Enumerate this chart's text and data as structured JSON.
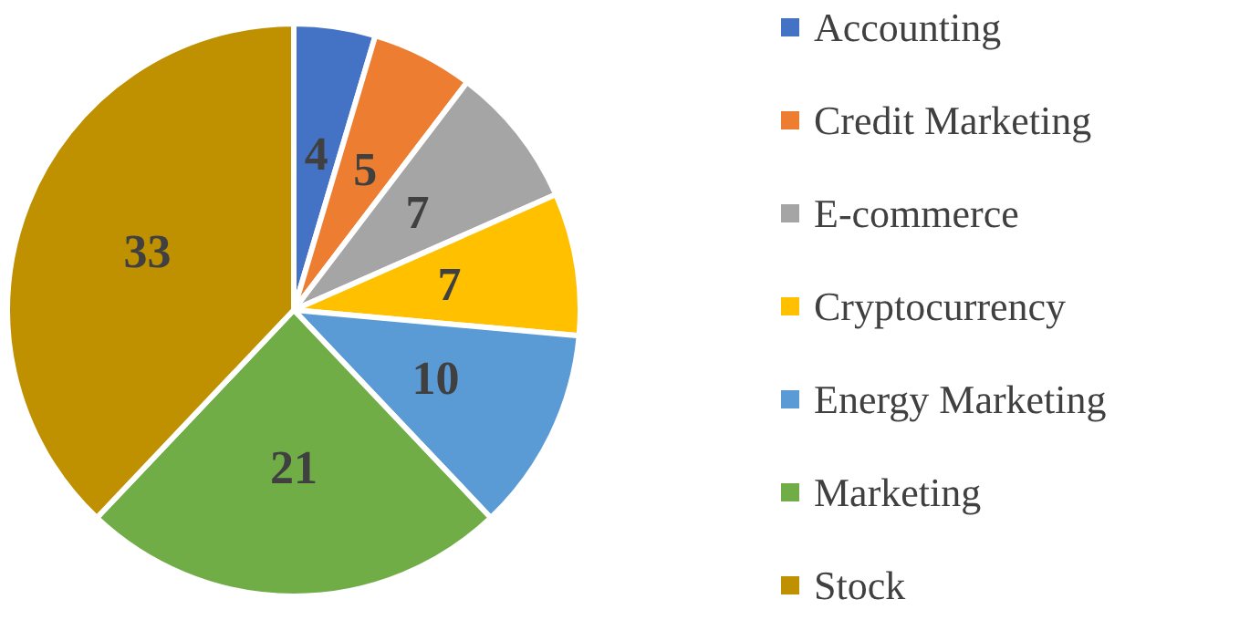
{
  "chart_data": {
    "type": "pie",
    "categories": [
      "Accounting",
      "Credit Marketing",
      "E-commerce",
      "Cryptocurrency",
      "Energy Marketing",
      "Marketing",
      "Stock"
    ],
    "values": [
      4,
      5,
      7,
      7,
      10,
      21,
      33
    ],
    "colors": [
      "#4472c4",
      "#ed7d31",
      "#a5a5a5",
      "#ffc000",
      "#5b9bd5",
      "#70ad47",
      "#bf9000"
    ],
    "data_labels": true,
    "legend": "right"
  }
}
